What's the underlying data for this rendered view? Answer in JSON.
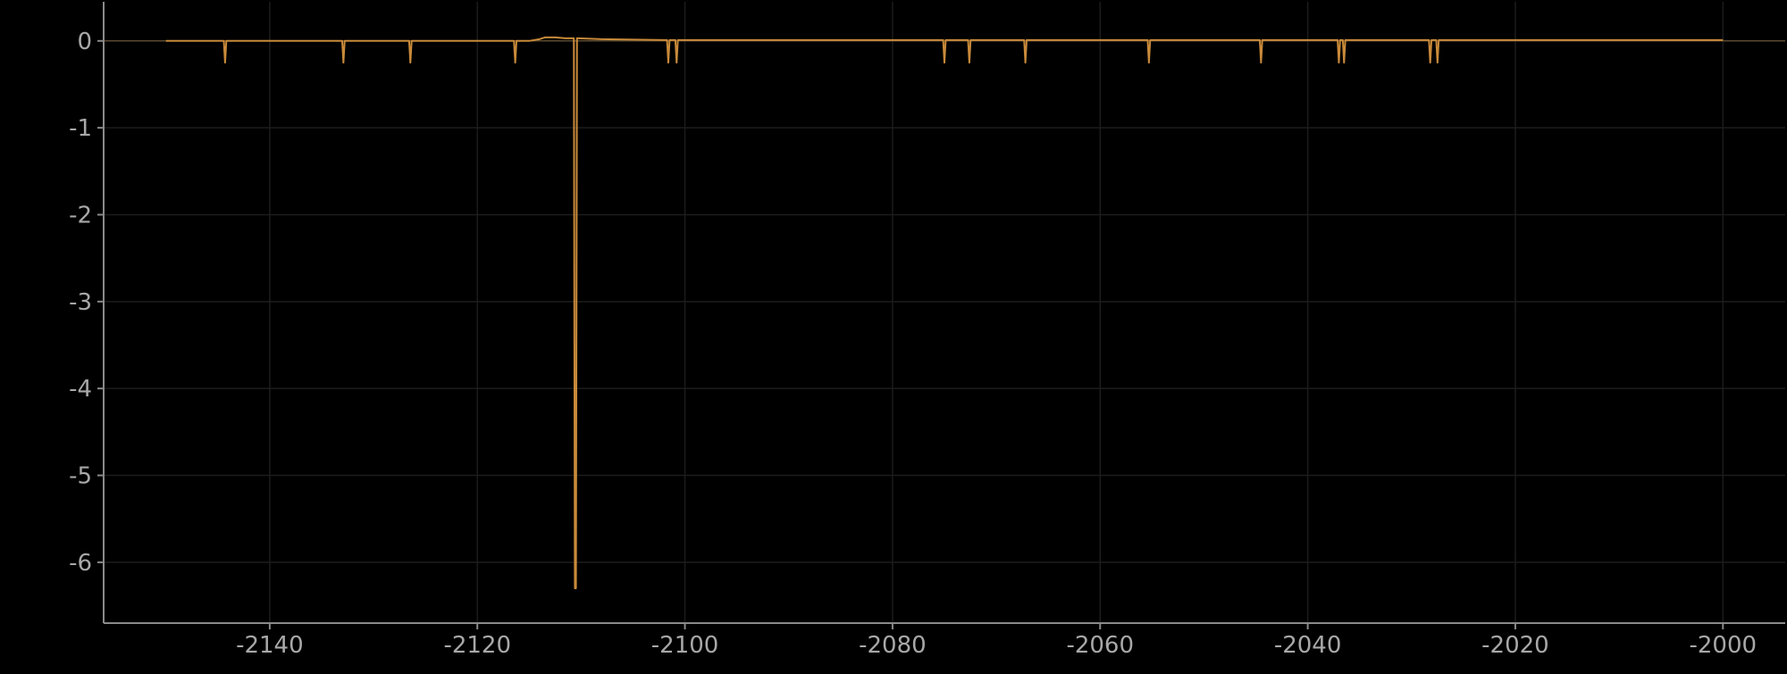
{
  "chart_data": {
    "type": "line",
    "title": "",
    "xlabel": "",
    "ylabel": "",
    "xlim": [
      -2156,
      -1994
    ],
    "ylim": [
      -6.7,
      0.45
    ],
    "x_ticks": [
      -2140,
      -2120,
      -2100,
      -2080,
      -2060,
      -2040,
      -2020,
      -2000
    ],
    "x_tick_labels": [
      "-2140",
      "-2120",
      "-2100",
      "-2080",
      "-2060",
      "-2040",
      "-2020",
      "-2000"
    ],
    "y_ticks": [
      0,
      -1,
      -2,
      -3,
      -4,
      -5,
      -6
    ],
    "y_tick_labels": [
      "0",
      "-1",
      "-2",
      "-3",
      "-4",
      "-5",
      "-6"
    ],
    "grid": true,
    "legend": "none",
    "colors": {
      "background": "#000000",
      "line": "#c98a3a",
      "grid": "#1c1c1c",
      "axis": "#8a8a8a",
      "tick_label": "#a8a8a8",
      "zero_line": "#5a4a30"
    },
    "series": [
      {
        "x": [
          -2150,
          -2144.42,
          -2144.3,
          -2144.18,
          -2133.02,
          -2132.9,
          -2132.78,
          -2126.57,
          -2126.45,
          -2126.33,
          -2116.47,
          -2116.35,
          -2116.23,
          -2115,
          -2114,
          -2113.5,
          -2112.5,
          -2111.5,
          -2110.7,
          -2110.6,
          -2110.5,
          -2110.4,
          -2110.3,
          -2108,
          -2105,
          -2102,
          -2101.72,
          -2101.6,
          -2101.48,
          -2100.92,
          -2100.8,
          -2100.68,
          -2098,
          -2075.12,
          -2075.0,
          -2074.88,
          -2072.72,
          -2072.6,
          -2072.48,
          -2067.32,
          -2067.2,
          -2067.08,
          -2055.42,
          -2055.3,
          -2055.18,
          -2044.62,
          -2044.5,
          -2044.38,
          -2037.12,
          -2037.0,
          -2036.88,
          -2036.62,
          -2036.5,
          -2036.38,
          -2028.32,
          -2028.2,
          -2028.08,
          -2027.62,
          -2027.5,
          -2027.38,
          -2000
        ],
        "y": [
          0,
          0,
          -0.25,
          0,
          0,
          -0.25,
          0,
          0,
          -0.25,
          0,
          0,
          -0.25,
          0,
          0,
          0.02,
          0.04,
          0.04,
          0.03,
          0.03,
          -6.3,
          -6.3,
          0.03,
          0.03,
          0.02,
          0.015,
          0.01,
          0.01,
          -0.25,
          0.01,
          0.01,
          -0.25,
          0.01,
          0.01,
          0.01,
          -0.25,
          0.01,
          0.01,
          -0.25,
          0.01,
          0.01,
          -0.25,
          0.01,
          0.01,
          -0.25,
          0.01,
          0.01,
          -0.25,
          0.01,
          0.01,
          -0.25,
          0.01,
          0.01,
          -0.25,
          0.01,
          0.01,
          -0.25,
          0.01,
          0.01,
          -0.25,
          0.01,
          0.01
        ]
      }
    ]
  }
}
